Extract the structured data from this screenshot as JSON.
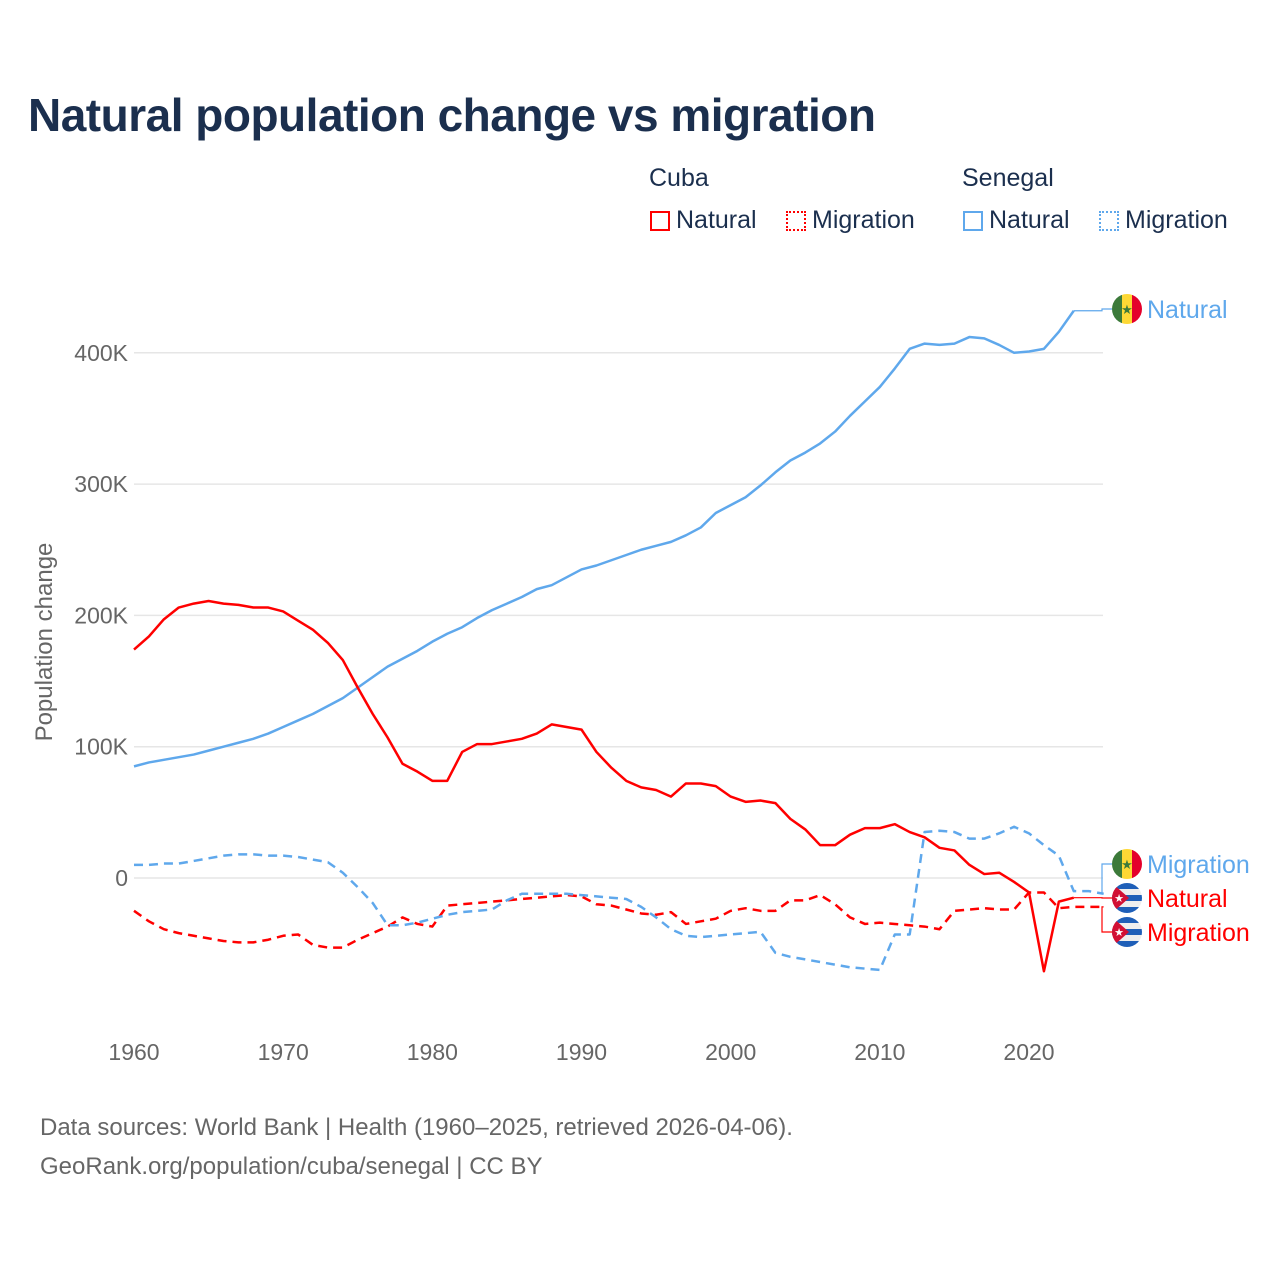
{
  "chart_data": {
    "type": "line",
    "title": "Natural population change vs migration",
    "xlabel": "",
    "ylabel": "Population change",
    "xlim": [
      1960,
      2025
    ],
    "ylim": [
      -100000,
      450000
    ],
    "x_ticks": [
      1960,
      1970,
      1980,
      1990,
      2000,
      2010,
      2020
    ],
    "x_tick_labels": [
      "1960",
      "1970",
      "1980",
      "1990",
      "2000",
      "2010",
      "2020"
    ],
    "y_ticks": [
      0,
      100000,
      200000,
      300000,
      400000
    ],
    "y_tick_labels": [
      "0",
      "100K",
      "200K",
      "300K",
      "400K"
    ],
    "grid": true,
    "legend": {
      "placement": "top-right",
      "groups": [
        {
          "name": "Cuba",
          "items": [
            "Natural",
            "Migration"
          ]
        },
        {
          "name": "Senegal",
          "items": [
            "Natural",
            "Migration"
          ]
        }
      ]
    },
    "colors": {
      "Cuba": "#ff0000",
      "Senegal": "#5fa8ec"
    },
    "series": [
      {
        "name": "Senegal Natural",
        "country": "Senegal",
        "kind": "Natural",
        "label": "Natural",
        "start": 1960,
        "unit": "thousands",
        "values": [
          85,
          88,
          90,
          92,
          94,
          97,
          100,
          103,
          106,
          110,
          115,
          120,
          125,
          131,
          137,
          145,
          153,
          161,
          167,
          173,
          180,
          186,
          191,
          198,
          204,
          209,
          214,
          220,
          223,
          229,
          235,
          238,
          242,
          246,
          250,
          253,
          256,
          261,
          267,
          278,
          284,
          290,
          299,
          309,
          318,
          324,
          331,
          340,
          352,
          363,
          374,
          388,
          403,
          407,
          406,
          407,
          412,
          411,
          406,
          400,
          401,
          403,
          416,
          432
        ]
      },
      {
        "name": "Cuba Natural",
        "country": "Cuba",
        "kind": "Natural",
        "label": "Natural",
        "start": 1960,
        "unit": "thousands",
        "values": [
          174,
          184,
          197,
          206,
          209,
          211,
          209,
          208,
          206,
          206,
          203,
          196,
          189,
          179,
          166,
          145,
          125,
          107,
          87,
          81,
          74,
          74,
          96,
          102,
          102,
          104,
          106,
          110,
          117,
          115,
          113,
          96,
          84,
          74,
          69,
          67,
          62,
          72,
          72,
          70,
          62,
          58,
          59,
          57,
          45,
          37,
          25,
          25,
          33,
          38,
          38,
          41,
          35,
          31,
          23,
          21,
          10,
          3,
          4,
          -3,
          -11,
          -71,
          -18,
          -15
        ]
      },
      {
        "name": "Cuba Migration",
        "country": "Cuba",
        "kind": "Migration",
        "label": "Migration",
        "start": 1960,
        "unit": "thousands",
        "values": [
          -25,
          -33,
          -39,
          -42,
          -44,
          -46,
          -48,
          -49,
          -49,
          -47,
          -44,
          -43,
          -51,
          -53,
          -53,
          -47,
          -42,
          -37,
          -30,
          -35,
          -37,
          -21,
          -20,
          -19,
          -18,
          -17,
          -16,
          -15,
          -14,
          -13,
          -14,
          -20,
          -21,
          -24,
          -27,
          -28,
          -26,
          -35,
          -33,
          -31,
          -25,
          -23,
          -25,
          -25,
          -17,
          -17,
          -13,
          -20,
          -30,
          -35,
          -34,
          -35,
          -36,
          -37,
          -39,
          -25,
          -24,
          -23,
          -24,
          -24,
          -11,
          -11,
          -23,
          -22,
          -22,
          -22
        ]
      },
      {
        "name": "Senegal Migration",
        "country": "Senegal",
        "kind": "Migration",
        "label": "Migration",
        "start": 1960,
        "unit": "thousands",
        "values": [
          10,
          10,
          11,
          11,
          13,
          15,
          17,
          18,
          18,
          17,
          17,
          16,
          14,
          12,
          4,
          -7,
          -19,
          -36,
          -36,
          -34,
          -31,
          -28,
          -26,
          -25,
          -24,
          -17,
          -12,
          -12,
          -12,
          -12,
          -13,
          -14,
          -15,
          -16,
          -22,
          -30,
          -39,
          -44,
          -45,
          -44,
          -43,
          -42,
          -41,
          -57,
          -60,
          -62,
          -64,
          -66,
          -68,
          -69,
          -70,
          -43,
          -43,
          35,
          36,
          35,
          30,
          30,
          34,
          39,
          34,
          25,
          17,
          -10,
          -10,
          -12
        ]
      }
    ]
  },
  "footer": {
    "line1": "Data sources: World Bank | Health (1960–2025, retrieved 2026-04-06).",
    "line2": "GeoRank.org/population/cuba/senegal | CC BY"
  }
}
